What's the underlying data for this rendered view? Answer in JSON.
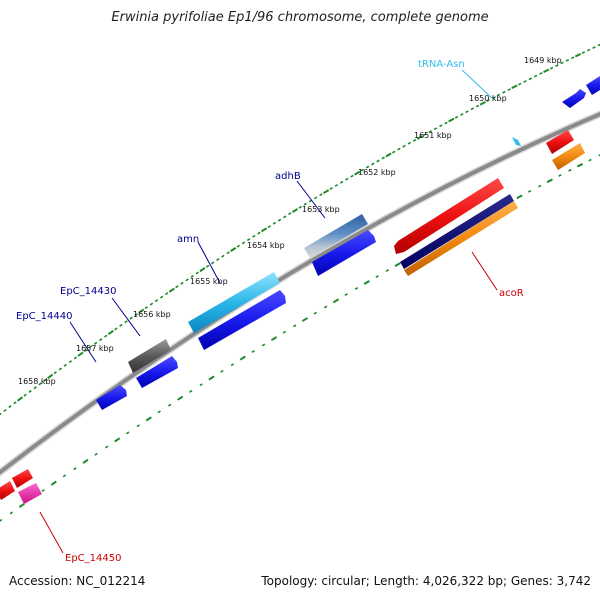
{
  "header": {
    "title": "Erwinia pyrifoliae Ep1/96 chromosome, complete genome"
  },
  "footer": {
    "accession": "Accession: NC_012214",
    "topology": "Topology: circular; Length: 4,026,322 bp; Genes: 3,742"
  },
  "colors": {
    "backbone": "#8a8a8a",
    "tick": "#1d8a2a",
    "forward_gene": "#1a1aee",
    "reverse_gene": "#ee1111",
    "trna": "#33bbee",
    "gene_label": "#00008b",
    "red_label": "#cc0000"
  },
  "scale": {
    "unit": "kbp",
    "ticks": [
      {
        "kbp": 1649,
        "label": "1649 kbp"
      },
      {
        "kbp": 1650,
        "label": "1650 kbp"
      },
      {
        "kbp": 1651,
        "label": "1651 kbp"
      },
      {
        "kbp": 1652,
        "label": "1652 kbp"
      },
      {
        "kbp": 1653,
        "label": "1653 kbp"
      },
      {
        "kbp": 1654,
        "label": "1654 kbp"
      },
      {
        "kbp": 1655,
        "label": "1655 kbp"
      },
      {
        "kbp": 1656,
        "label": "1656 kbp"
      },
      {
        "kbp": 1657,
        "label": "1657 kbp"
      },
      {
        "kbp": 1658,
        "label": "1658 kbp"
      }
    ]
  },
  "gene_labels": [
    {
      "name": "tRNA-Asn",
      "color": "trna"
    },
    {
      "name": "adhB",
      "color": "gene_label"
    },
    {
      "name": "amn",
      "color": "gene_label"
    },
    {
      "name": "EpC_14430",
      "color": "gene_label"
    },
    {
      "name": "EpC_14440",
      "color": "gene_label"
    },
    {
      "name": "acoR",
      "color": "red_label"
    },
    {
      "name": "EpC_14450",
      "color": "red_label"
    }
  ]
}
